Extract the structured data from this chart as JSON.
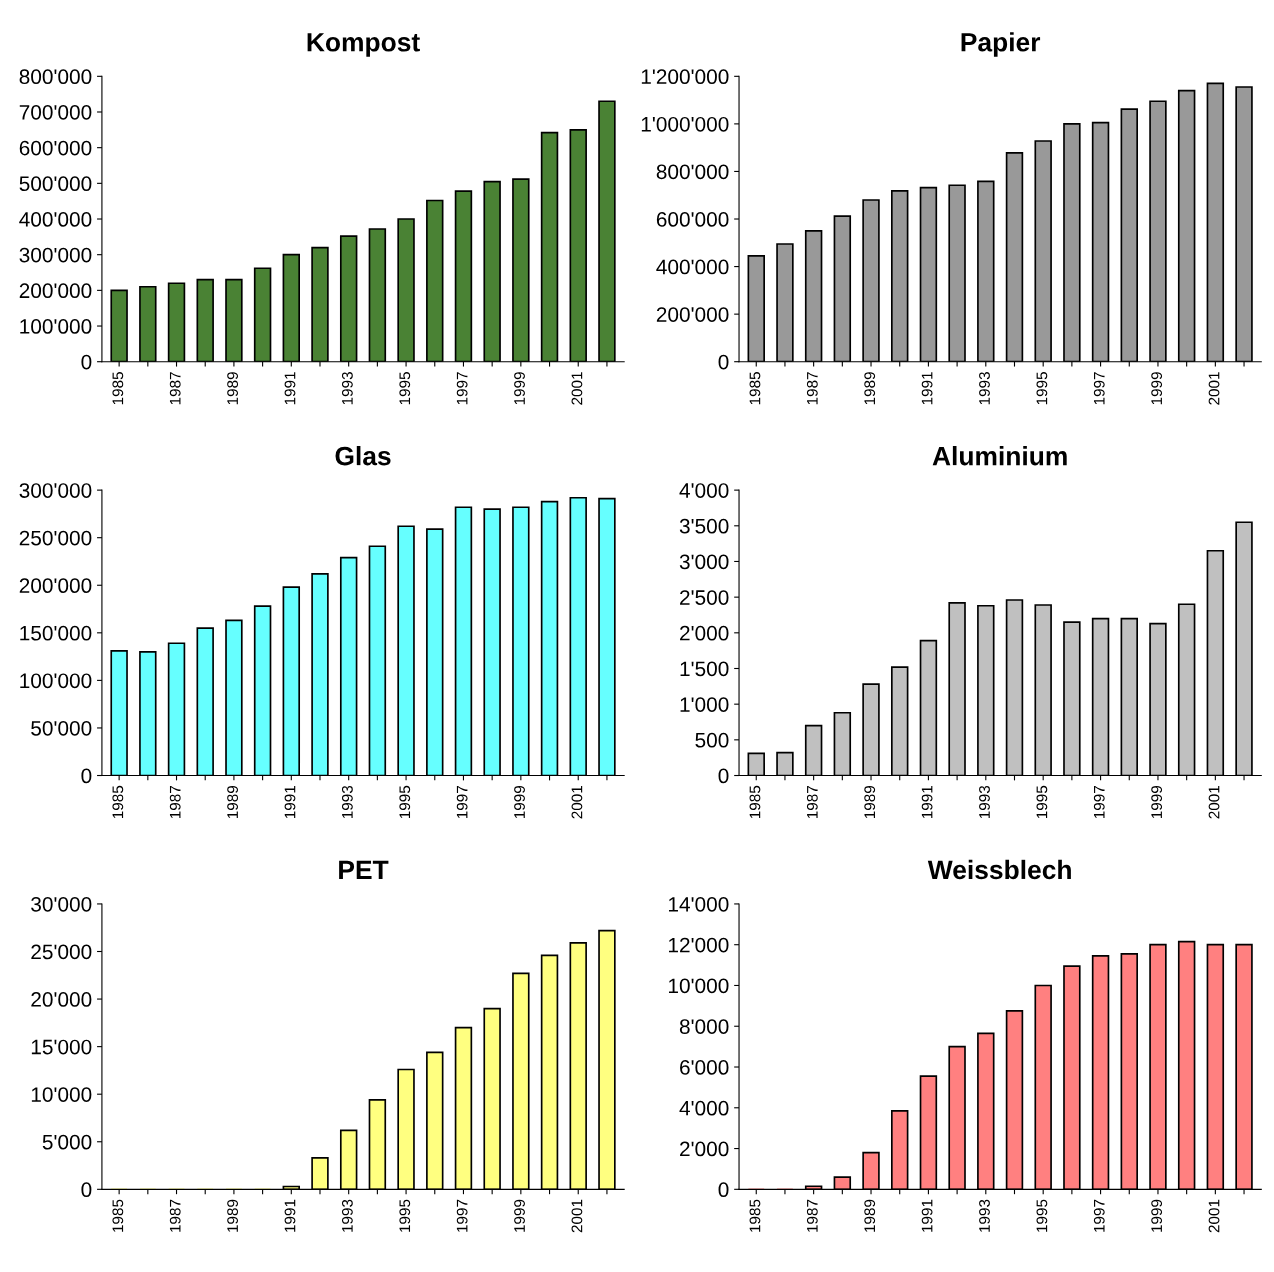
{
  "chart_data": [
    {
      "type": "bar",
      "title": "Kompost",
      "categories": [
        "1985",
        null,
        "1987",
        null,
        "1989",
        null,
        "1991",
        null,
        "1993",
        null,
        "1995",
        null,
        "1997",
        null,
        "1999",
        null,
        "2001",
        null
      ],
      "color": "#4a8234",
      "values": [
        200000,
        210000,
        220000,
        230000,
        230000,
        262000,
        300000,
        320000,
        352000,
        372000,
        400000,
        452000,
        478000,
        505000,
        512000,
        642000,
        650000,
        730000
      ],
      "ylim": [
        0,
        800000
      ],
      "yticks": [
        {
          "value": 0,
          "label": "0"
        },
        {
          "value": 100000,
          "label": "100'000"
        },
        {
          "value": 200000,
          "label": "200'000"
        },
        {
          "value": 300000,
          "label": "300'000"
        },
        {
          "value": 400000,
          "label": "400'000"
        },
        {
          "value": 500000,
          "label": "500'000"
        },
        {
          "value": 600000,
          "label": "600'000"
        },
        {
          "value": 700000,
          "label": "700'000"
        },
        {
          "value": 800000,
          "label": "800'000"
        }
      ]
    },
    {
      "type": "bar",
      "title": "Papier",
      "categories": [
        "1985",
        null,
        "1987",
        null,
        "1989",
        null,
        "1991",
        null,
        "1993",
        null,
        "1995",
        null,
        "1997",
        null,
        "1999",
        null,
        "2001",
        null
      ],
      "color": "#999999",
      "values": [
        445000,
        495000,
        550000,
        612000,
        680000,
        718000,
        732000,
        742000,
        758000,
        878000,
        928000,
        1000000,
        1005000,
        1062000,
        1095000,
        1140000,
        1170000,
        1155000
      ],
      "ylim": [
        0,
        1200000
      ],
      "yticks": [
        {
          "value": 0,
          "label": "0"
        },
        {
          "value": 200000,
          "label": "200'000"
        },
        {
          "value": 400000,
          "label": "400'000"
        },
        {
          "value": 600000,
          "label": "600'000"
        },
        {
          "value": 800000,
          "label": "800'000"
        },
        {
          "value": 1000000,
          "label": "1'000'000"
        },
        {
          "value": 1200000,
          "label": "1'200'000"
        }
      ]
    },
    {
      "type": "bar",
      "title": "Glas",
      "categories": [
        "1985",
        null,
        "1987",
        null,
        "1989",
        null,
        "1991",
        null,
        "1993",
        null,
        "1995",
        null,
        "1997",
        null,
        "1999",
        null,
        "2001",
        null
      ],
      "color": "#66ffff",
      "values": [
        131000,
        130000,
        139000,
        155000,
        163000,
        178000,
        198000,
        212000,
        229000,
        241000,
        262000,
        259000,
        282000,
        280000,
        282000,
        288000,
        292000,
        291000
      ],
      "ylim": [
        0,
        300000
      ],
      "yticks": [
        {
          "value": 0,
          "label": "0"
        },
        {
          "value": 50000,
          "label": "50'000"
        },
        {
          "value": 100000,
          "label": "100'000"
        },
        {
          "value": 150000,
          "label": "150'000"
        },
        {
          "value": 200000,
          "label": "200'000"
        },
        {
          "value": 250000,
          "label": "250'000"
        },
        {
          "value": 300000,
          "label": "300'000"
        }
      ]
    },
    {
      "type": "bar",
      "title": "Aluminium",
      "categories": [
        "1985",
        null,
        "1987",
        null,
        "1989",
        null,
        "1991",
        null,
        "1993",
        null,
        "1995",
        null,
        "1997",
        null,
        "1999",
        null,
        "2001",
        null
      ],
      "color": "#c0c0c0",
      "values": [
        310,
        320,
        700,
        880,
        1280,
        1520,
        1890,
        2420,
        2380,
        2460,
        2390,
        2150,
        2200,
        2200,
        2130,
        2400,
        3150,
        3550
      ],
      "ylim": [
        0,
        4000
      ],
      "yticks": [
        {
          "value": 0,
          "label": "0"
        },
        {
          "value": 500,
          "label": "500"
        },
        {
          "value": 1000,
          "label": "1'000"
        },
        {
          "value": 1500,
          "label": "1'500"
        },
        {
          "value": 2000,
          "label": "2'000"
        },
        {
          "value": 2500,
          "label": "2'500"
        },
        {
          "value": 3000,
          "label": "3'000"
        },
        {
          "value": 3500,
          "label": "3'500"
        },
        {
          "value": 4000,
          "label": "4'000"
        }
      ]
    },
    {
      "type": "bar",
      "title": "PET",
      "categories": [
        "1985",
        null,
        "1987",
        null,
        "1989",
        null,
        "1991",
        null,
        "1993",
        null,
        "1995",
        null,
        "1997",
        null,
        "1999",
        null,
        "2001",
        null
      ],
      "color": "#ffff80",
      "values": [
        0,
        0,
        0,
        0,
        0,
        0,
        300,
        3300,
        6200,
        9400,
        12600,
        14400,
        17000,
        19000,
        22700,
        24600,
        25900,
        27200
      ],
      "ylim": [
        0,
        30000
      ],
      "yticks": [
        {
          "value": 0,
          "label": "0"
        },
        {
          "value": 5000,
          "label": "5'000"
        },
        {
          "value": 10000,
          "label": "10'000"
        },
        {
          "value": 15000,
          "label": "15'000"
        },
        {
          "value": 20000,
          "label": "20'000"
        },
        {
          "value": 25000,
          "label": "25'000"
        },
        {
          "value": 30000,
          "label": "30'000"
        }
      ]
    },
    {
      "type": "bar",
      "title": "Weissblech",
      "categories": [
        "1985",
        null,
        "1987",
        null,
        "1989",
        null,
        "1991",
        null,
        "1993",
        null,
        "1995",
        null,
        "1997",
        null,
        "1999",
        null,
        "2001",
        null
      ],
      "color": "#ff8080",
      "values": [
        0,
        0,
        150,
        600,
        1800,
        3850,
        5550,
        7000,
        7650,
        8750,
        10000,
        10950,
        11450,
        11550,
        12000,
        12150,
        12000,
        12000
      ],
      "ylim": [
        0,
        14000
      ],
      "yticks": [
        {
          "value": 0,
          "label": "0"
        },
        {
          "value": 2000,
          "label": "2'000"
        },
        {
          "value": 4000,
          "label": "4'000"
        },
        {
          "value": 6000,
          "label": "6'000"
        },
        {
          "value": 8000,
          "label": "8'000"
        },
        {
          "value": 10000,
          "label": "10'000"
        },
        {
          "value": 12000,
          "label": "12'000"
        },
        {
          "value": 14000,
          "label": "14'000"
        }
      ]
    }
  ]
}
